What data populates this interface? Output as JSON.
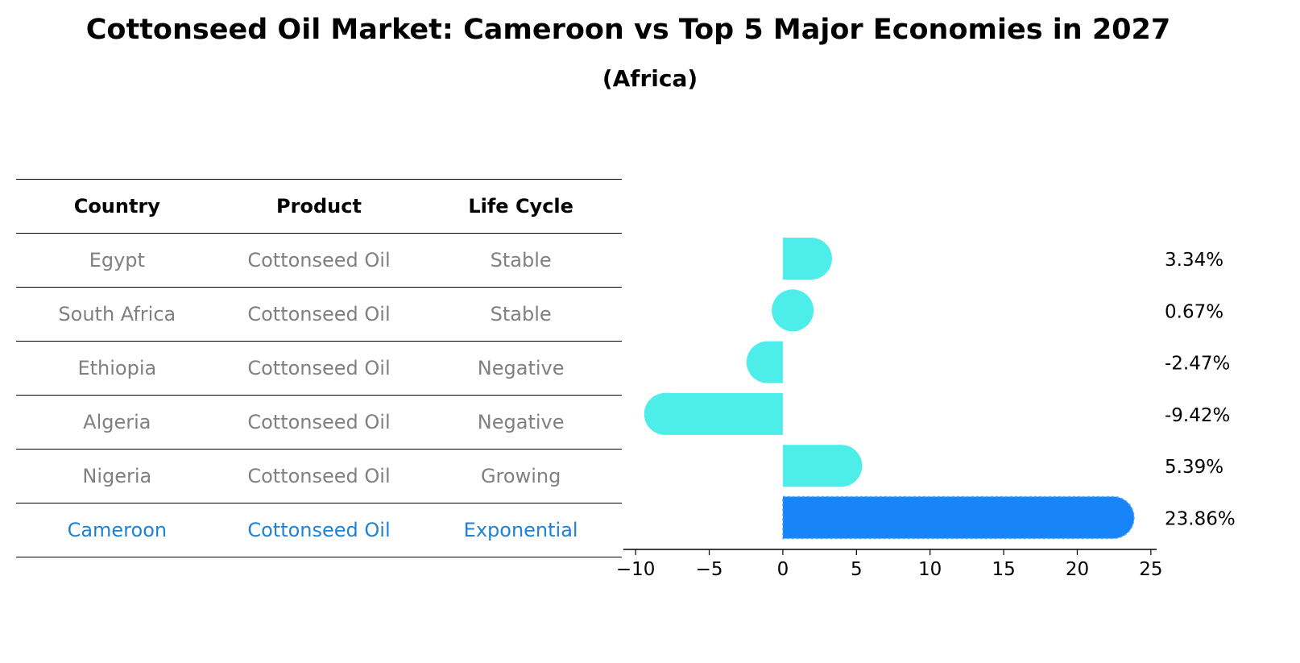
{
  "title": "Cottonseed Oil Market: Cameroon vs Top 5 Major Economies in 2027",
  "subtitle": "(Africa)",
  "table": {
    "headers": [
      "Country",
      "Product",
      "Life Cycle"
    ],
    "rows": [
      {
        "country": "Egypt",
        "product": "Cottonseed Oil",
        "life_cycle": "Stable",
        "highlight": false
      },
      {
        "country": "South Africa",
        "product": "Cottonseed Oil",
        "life_cycle": "Stable",
        "highlight": false
      },
      {
        "country": "Ethiopia",
        "product": "Cottonseed Oil",
        "life_cycle": "Negative",
        "highlight": false
      },
      {
        "country": "Algeria",
        "product": "Cottonseed Oil",
        "life_cycle": "Negative",
        "highlight": false
      },
      {
        "country": "Nigeria",
        "product": "Cottonseed Oil",
        "life_cycle": "Growing",
        "highlight": false
      },
      {
        "country": "Cameroon",
        "product": "Cottonseed Oil",
        "life_cycle": "Exponential",
        "highlight": true
      }
    ]
  },
  "colors": {
    "bar": "#4deeea",
    "highlight_bar": "#1785f7",
    "highlight_text": "#1f82d6",
    "muted_text": "#808080"
  },
  "chart_data": {
    "type": "bar",
    "orientation": "horizontal",
    "categories": [
      "Egypt",
      "South Africa",
      "Ethiopia",
      "Algeria",
      "Nigeria",
      "Cameroon"
    ],
    "values": [
      3.34,
      0.67,
      -2.47,
      -9.42,
      5.39,
      23.86
    ],
    "value_labels": [
      "3.34%",
      "0.67%",
      "-2.47%",
      "-9.42%",
      "5.39%",
      "23.86%"
    ],
    "highlight_index": 5,
    "xlim": [
      -10.5,
      25.5
    ],
    "xticks": [
      -10,
      -5,
      0,
      5,
      10,
      15,
      20,
      25
    ],
    "xtick_labels": [
      "−10",
      "−5",
      "0",
      "5",
      "10",
      "15",
      "20",
      "25"
    ],
    "grid": false
  }
}
